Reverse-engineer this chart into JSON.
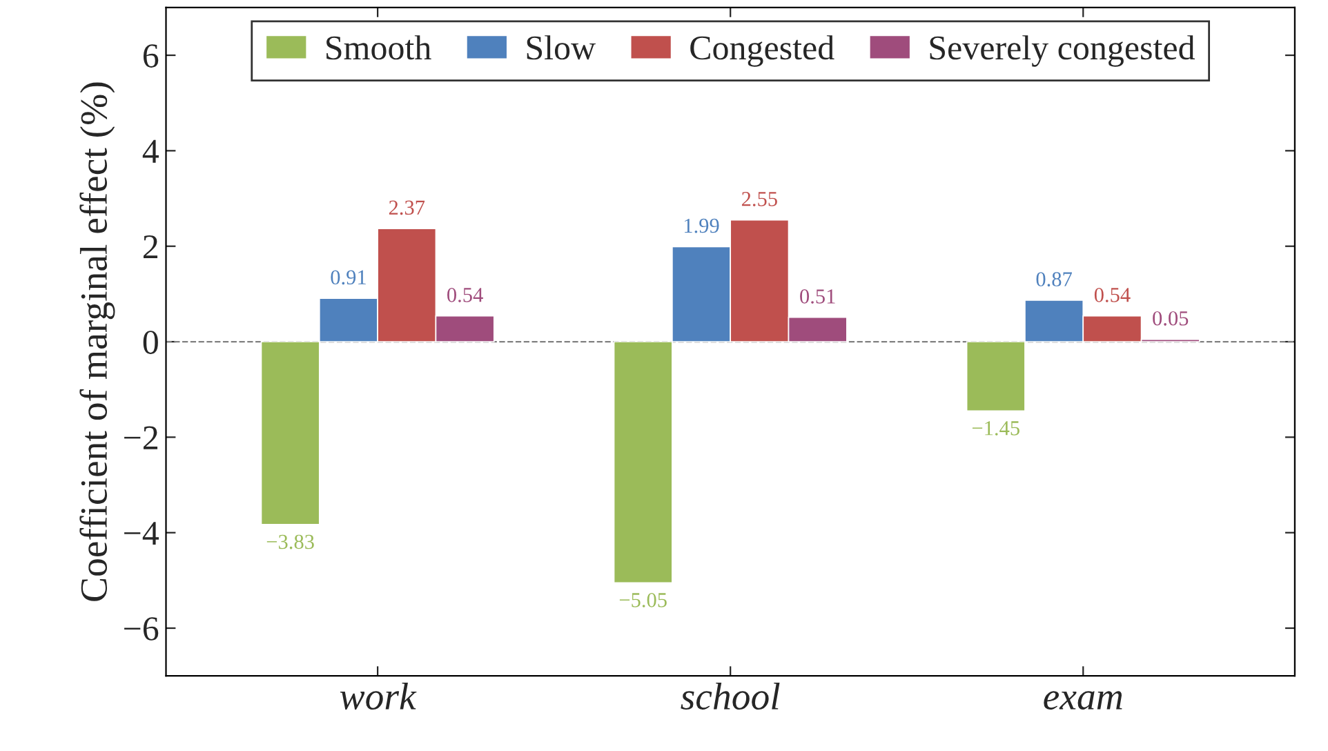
{
  "chart_data": {
    "type": "bar",
    "ylabel": "Coefficient of marginal effect (%)",
    "categories": [
      "work",
      "school",
      "exam"
    ],
    "series": [
      {
        "name": "Smooth",
        "color": "#9bbb59",
        "values": [
          -3.83,
          -5.05,
          -1.45
        ],
        "value_labels": [
          "−3.83",
          "−5.05",
          "−1.45"
        ]
      },
      {
        "name": "Slow",
        "color": "#4f81bd",
        "values": [
          0.91,
          1.99,
          0.87
        ],
        "value_labels": [
          "0.91",
          "1.99",
          "0.87"
        ]
      },
      {
        "name": "Congested",
        "color": "#c0504d",
        "values": [
          2.37,
          2.55,
          0.54
        ],
        "value_labels": [
          "2.37",
          "2.55",
          "0.54"
        ]
      },
      {
        "name": "Severely congested",
        "color": "#9f4c7c",
        "values": [
          0.54,
          0.51,
          0.05
        ],
        "value_labels": [
          "0.54",
          "0.51",
          "0.05"
        ]
      }
    ],
    "ylim": [
      -7,
      7
    ],
    "yticks": [
      {
        "value": -6,
        "label": "−6"
      },
      {
        "value": -4,
        "label": "−4"
      },
      {
        "value": -2,
        "label": "−2"
      },
      0,
      2,
      4,
      6
    ],
    "ref_lines": [
      {
        "axis": "y",
        "value": 0,
        "label": null,
        "color": "#808080",
        "line_style": "dashed"
      }
    ],
    "legend": "top",
    "grid": false
  }
}
